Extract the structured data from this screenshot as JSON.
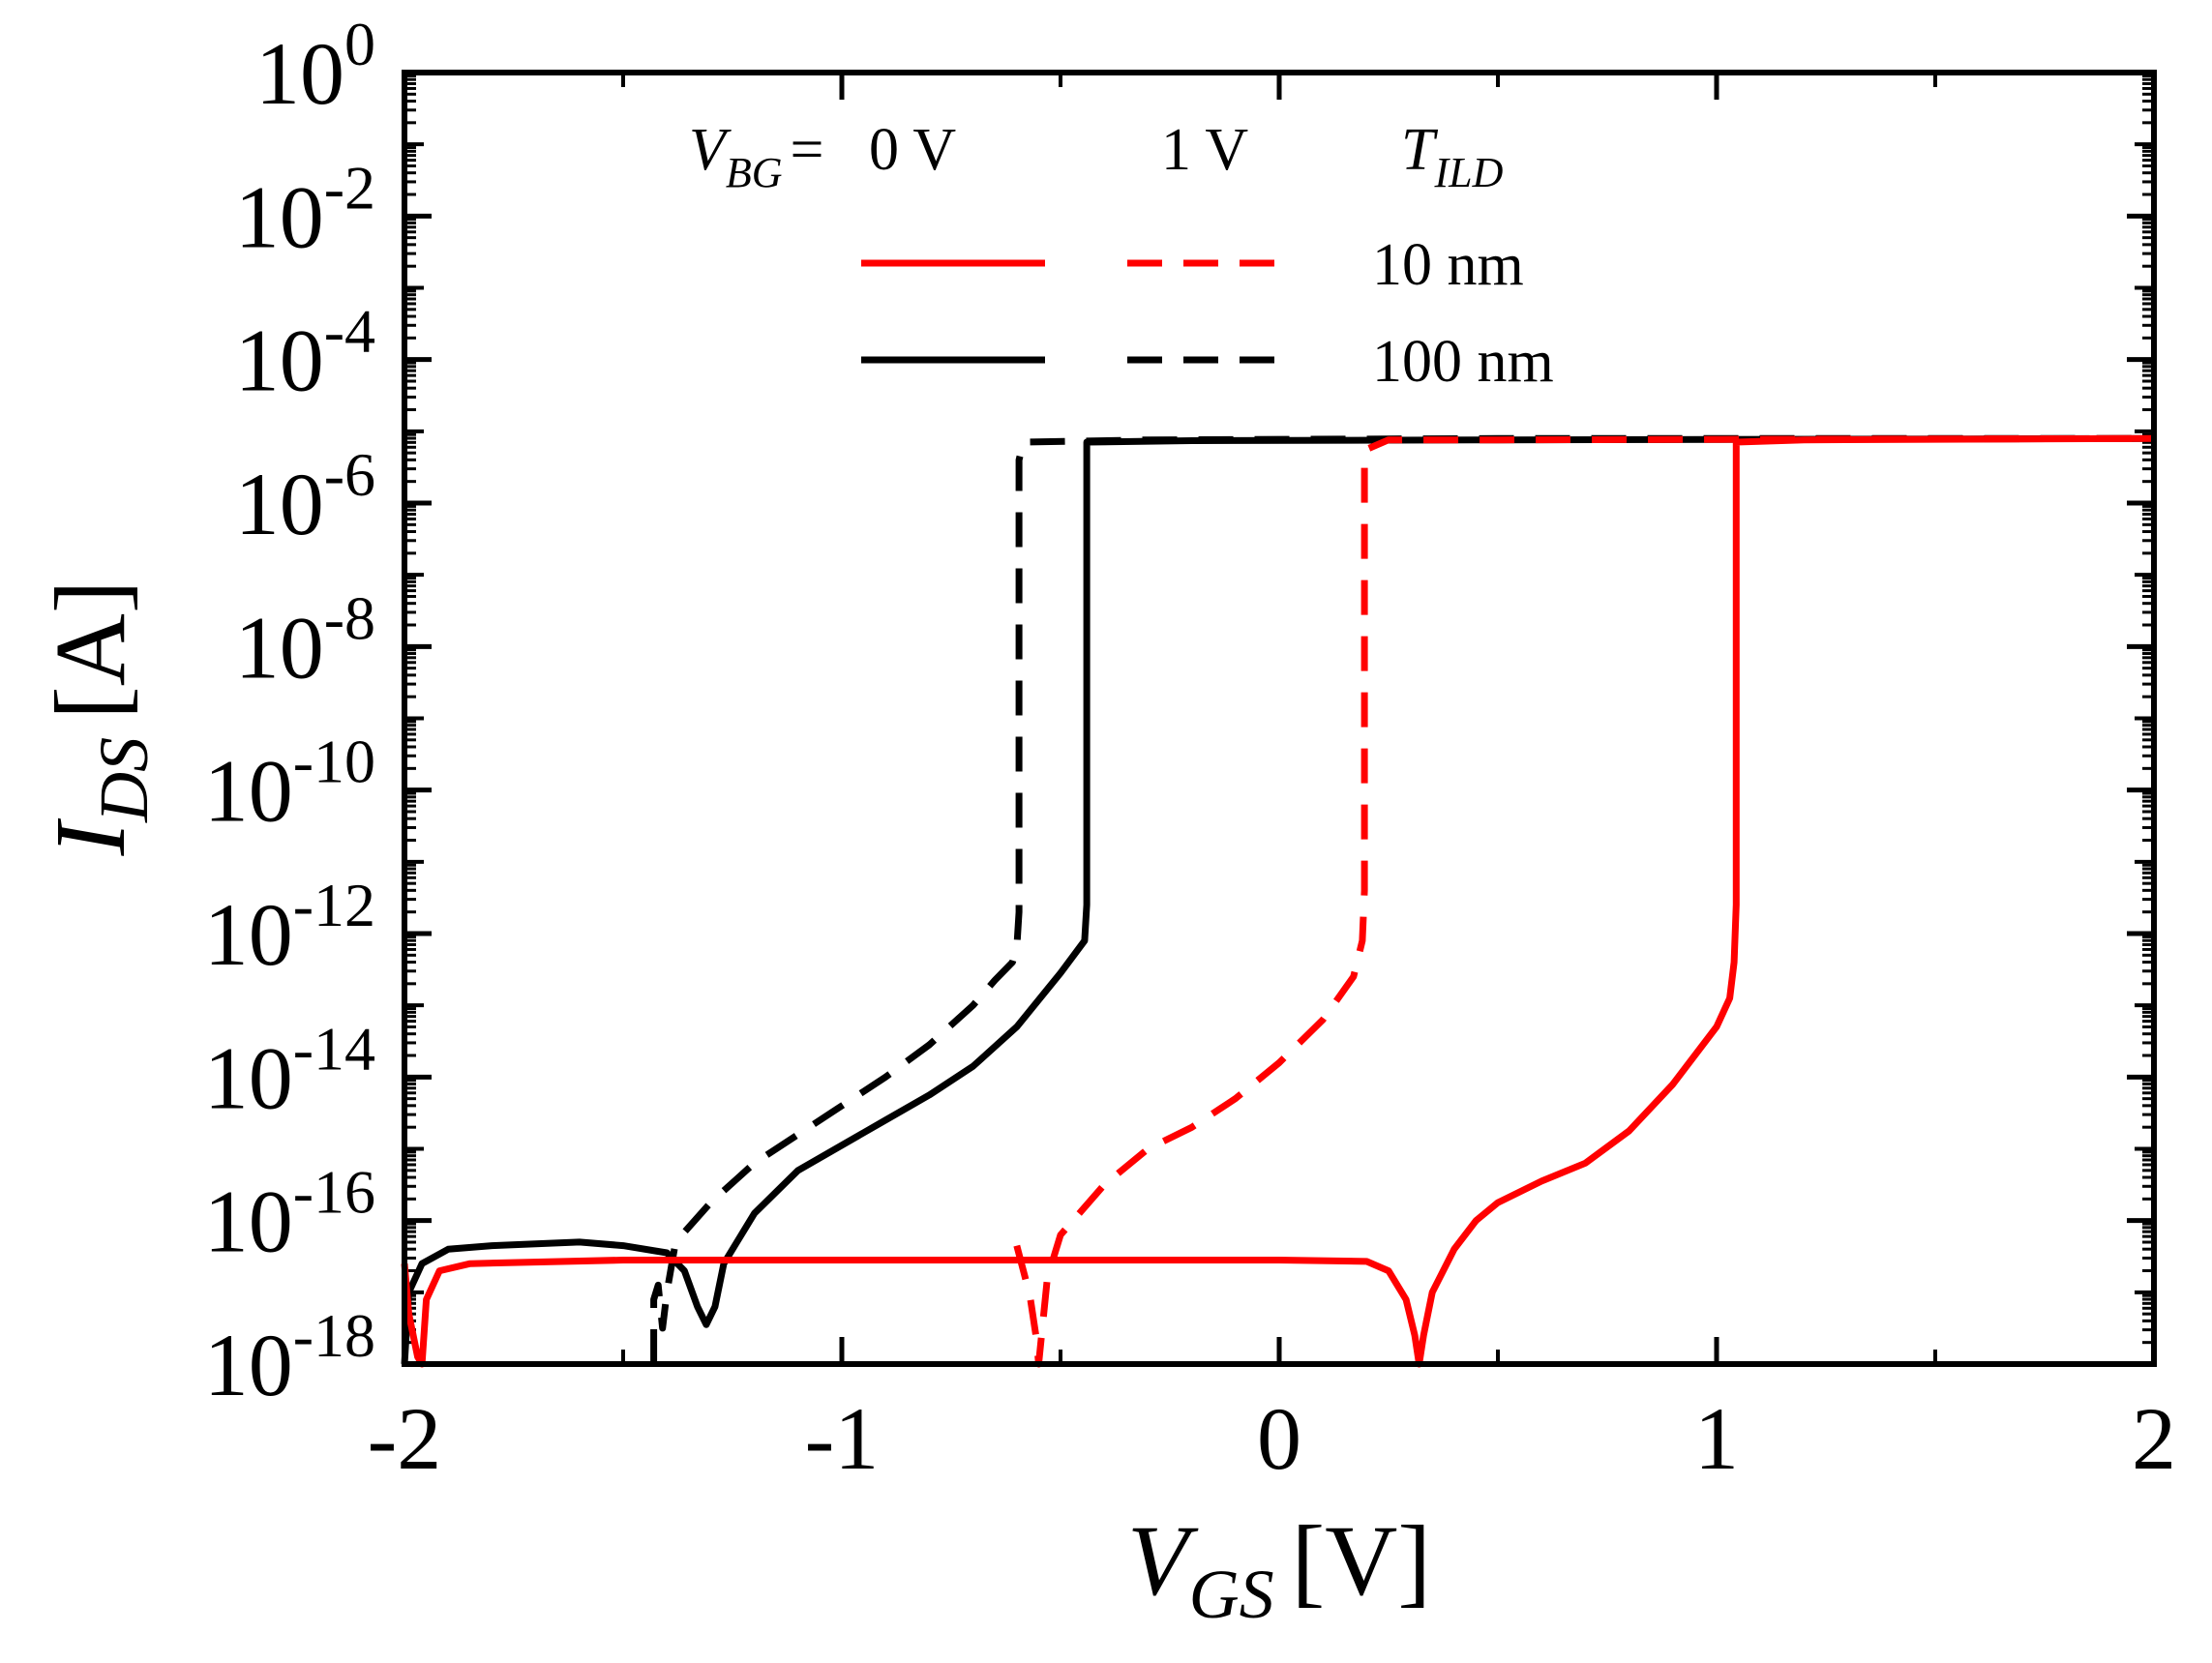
{
  "chart_data": {
    "type": "line",
    "xscale": "linear",
    "yscale": "log",
    "xlim": [
      -2,
      2
    ],
    "ylim_exp": [
      -18,
      0
    ],
    "xlabel": {
      "main": "V",
      "sub": "GS",
      "unit": "[V]"
    },
    "ylabel": {
      "main": "I",
      "sub": "DS",
      "unit": "[A]"
    },
    "x_ticks": [
      {
        "value": -2,
        "label": "-2"
      },
      {
        "value": -1,
        "label": "-1"
      },
      {
        "value": 0,
        "label": "0"
      },
      {
        "value": 1,
        "label": "1"
      },
      {
        "value": 2,
        "label": "2"
      }
    ],
    "y_ticks": [
      {
        "exp": 0,
        "base": "10",
        "sup": "0"
      },
      {
        "exp": -2,
        "base": "10",
        "sup": "-2"
      },
      {
        "exp": -4,
        "base": "10",
        "sup": "-4"
      },
      {
        "exp": -6,
        "base": "10",
        "sup": "-6"
      },
      {
        "exp": -8,
        "base": "10",
        "sup": "-8"
      },
      {
        "exp": -10,
        "base": "10",
        "sup": "-10"
      },
      {
        "exp": -12,
        "base": "10",
        "sup": "-12"
      },
      {
        "exp": -14,
        "base": "10",
        "sup": "-14"
      },
      {
        "exp": -16,
        "base": "10",
        "sup": "-16"
      },
      {
        "exp": -18,
        "base": "10",
        "sup": "-18"
      }
    ],
    "legend": {
      "placement": "top",
      "vbg_label": {
        "main": "V",
        "sub": "BG",
        "eq": "="
      },
      "vbg_values": [
        "0 V",
        "1 V"
      ],
      "tild_label": {
        "main": "T",
        "sub": "ILD"
      },
      "rows": [
        {
          "label": "10 nm",
          "color": "#ff0000"
        },
        {
          "label": "100 nm",
          "color": "#000000"
        }
      ]
    },
    "series": [
      {
        "name": "T_ILD = 100 nm, V_BG = 1 V",
        "color": "#000000",
        "dash": "dashed",
        "points": [
          [
            -1.43,
            -18.0
          ],
          [
            -1.43,
            -17.1
          ],
          [
            -1.42,
            -16.9
          ],
          [
            -1.41,
            -17.5
          ],
          [
            -1.4,
            -17.0
          ],
          [
            -1.38,
            -16.3
          ],
          [
            -1.3,
            -15.75
          ],
          [
            -1.2,
            -15.2
          ],
          [
            -1.1,
            -14.8
          ],
          [
            -1.0,
            -14.4
          ],
          [
            -0.9,
            -14.0
          ],
          [
            -0.8,
            -13.55
          ],
          [
            -0.7,
            -13.0
          ],
          [
            -0.65,
            -12.65
          ],
          [
            -0.61,
            -12.4
          ],
          [
            -0.6,
            -12.2
          ],
          [
            -0.595,
            -11.7
          ],
          [
            -0.595,
            -5.4
          ],
          [
            -0.585,
            -5.15
          ],
          [
            -0.3,
            -5.12
          ],
          [
            0.5,
            -5.1
          ],
          [
            1.5,
            -5.1
          ],
          [
            2.0,
            -5.1
          ]
        ]
      },
      {
        "name": "T_ILD = 100 nm, V_BG = 0 V",
        "color": "#000000",
        "dash": "solid",
        "points": [
          [
            -2.0,
            -18.0
          ],
          [
            -1.99,
            -17.0
          ],
          [
            -1.96,
            -16.6
          ],
          [
            -1.9,
            -16.4
          ],
          [
            -1.8,
            -16.35
          ],
          [
            -1.6,
            -16.3
          ],
          [
            -1.5,
            -16.35
          ],
          [
            -1.4,
            -16.45
          ],
          [
            -1.36,
            -16.7
          ],
          [
            -1.33,
            -17.2
          ],
          [
            -1.31,
            -17.45
          ],
          [
            -1.29,
            -17.2
          ],
          [
            -1.27,
            -16.6
          ],
          [
            -1.2,
            -15.9
          ],
          [
            -1.1,
            -15.3
          ],
          [
            -1.0,
            -14.95
          ],
          [
            -0.9,
            -14.6
          ],
          [
            -0.8,
            -14.25
          ],
          [
            -0.7,
            -13.85
          ],
          [
            -0.6,
            -13.3
          ],
          [
            -0.5,
            -12.55
          ],
          [
            -0.445,
            -12.1
          ],
          [
            -0.44,
            -11.6
          ],
          [
            -0.44,
            -5.15
          ],
          [
            -0.2,
            -5.13
          ],
          [
            0.5,
            -5.12
          ],
          [
            2.0,
            -5.1
          ]
        ]
      },
      {
        "name": "T_ILD = 10 nm, V_BG = 1 V",
        "color": "#ff0000",
        "dash": "dashed",
        "points": [
          [
            -0.6,
            -16.35
          ],
          [
            -0.57,
            -17.05
          ],
          [
            -0.555,
            -17.65
          ],
          [
            -0.55,
            -18.0
          ],
          [
            -0.53,
            -16.8
          ],
          [
            -0.5,
            -16.2
          ],
          [
            -0.4,
            -15.5
          ],
          [
            -0.3,
            -15.0
          ],
          [
            -0.2,
            -14.7
          ],
          [
            -0.1,
            -14.3
          ],
          [
            0.0,
            -13.8
          ],
          [
            0.1,
            -13.2
          ],
          [
            0.17,
            -12.6
          ],
          [
            0.19,
            -12.1
          ],
          [
            0.195,
            -11.4
          ],
          [
            0.195,
            -5.5
          ],
          [
            0.2,
            -5.25
          ],
          [
            0.25,
            -5.12
          ],
          [
            0.5,
            -5.12
          ],
          [
            2.0,
            -5.1
          ]
        ]
      },
      {
        "name": "T_ILD = 10 nm, V_BG = 0 V",
        "color": "#ff0000",
        "dash": "solid",
        "points": [
          [
            -2.0,
            -16.6
          ],
          [
            -1.99,
            -17.3
          ],
          [
            -1.97,
            -17.9
          ],
          [
            -1.96,
            -18.0
          ],
          [
            -1.95,
            -17.1
          ],
          [
            -1.92,
            -16.7
          ],
          [
            -1.85,
            -16.6
          ],
          [
            -1.5,
            -16.55
          ],
          [
            -1.0,
            -16.55
          ],
          [
            -0.5,
            -16.55
          ],
          [
            0.0,
            -16.55
          ],
          [
            0.2,
            -16.57
          ],
          [
            0.25,
            -16.7
          ],
          [
            0.29,
            -17.1
          ],
          [
            0.31,
            -17.6
          ],
          [
            0.32,
            -18.0
          ],
          [
            0.33,
            -17.6
          ],
          [
            0.35,
            -17.0
          ],
          [
            0.4,
            -16.4
          ],
          [
            0.45,
            -16.0
          ],
          [
            0.5,
            -15.75
          ],
          [
            0.6,
            -15.45
          ],
          [
            0.7,
            -15.2
          ],
          [
            0.8,
            -14.75
          ],
          [
            0.9,
            -14.1
          ],
          [
            1.0,
            -13.3
          ],
          [
            1.03,
            -12.9
          ],
          [
            1.04,
            -12.4
          ],
          [
            1.045,
            -11.6
          ],
          [
            1.045,
            -5.15
          ],
          [
            1.2,
            -5.12
          ],
          [
            2.0,
            -5.1
          ]
        ]
      }
    ]
  }
}
